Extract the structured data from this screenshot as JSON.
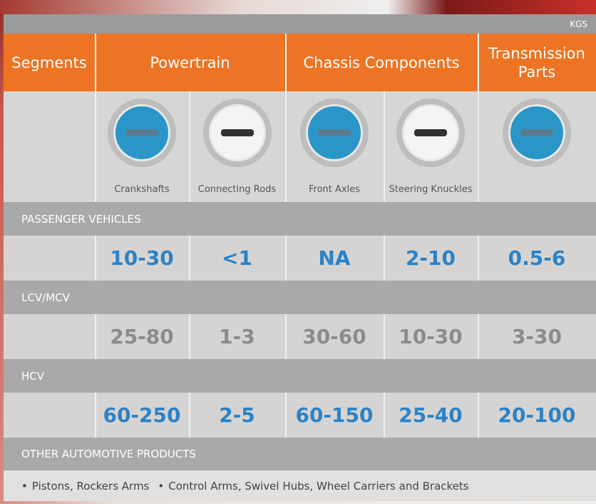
{
  "header": {
    "unit": "KGS",
    "groups": [
      "Segments",
      "Powertrain",
      "Chassis Components",
      "Transmission Parts"
    ],
    "products": [
      "Crankshafts",
      "Connecting Rods",
      "Front Axles",
      "Steering Knuckles"
    ]
  },
  "sections": [
    {
      "title": "PASSENGER VEHICLES",
      "values": [
        "10-30",
        "<1",
        "NA",
        "2-10",
        "0.5-6"
      ],
      "color": "#2b82c6"
    },
    {
      "title": "LCV/MCV",
      "values": [
        "25-80",
        "1-3",
        "30-60",
        "10-30",
        "3-30"
      ],
      "color": "#8c8c8c"
    },
    {
      "title": "HCV",
      "values": [
        "60-250",
        "2-5",
        "60-150",
        "25-40",
        "20-100"
      ],
      "color": "#2b82c6"
    }
  ],
  "other": {
    "title": "OTHER AUTOMOTIVE PRODUCTS",
    "items": [
      "Pistons, Rockers Arms",
      "Control Arms, Swivel Hubs, Wheel Carriers and Brackets"
    ]
  }
}
